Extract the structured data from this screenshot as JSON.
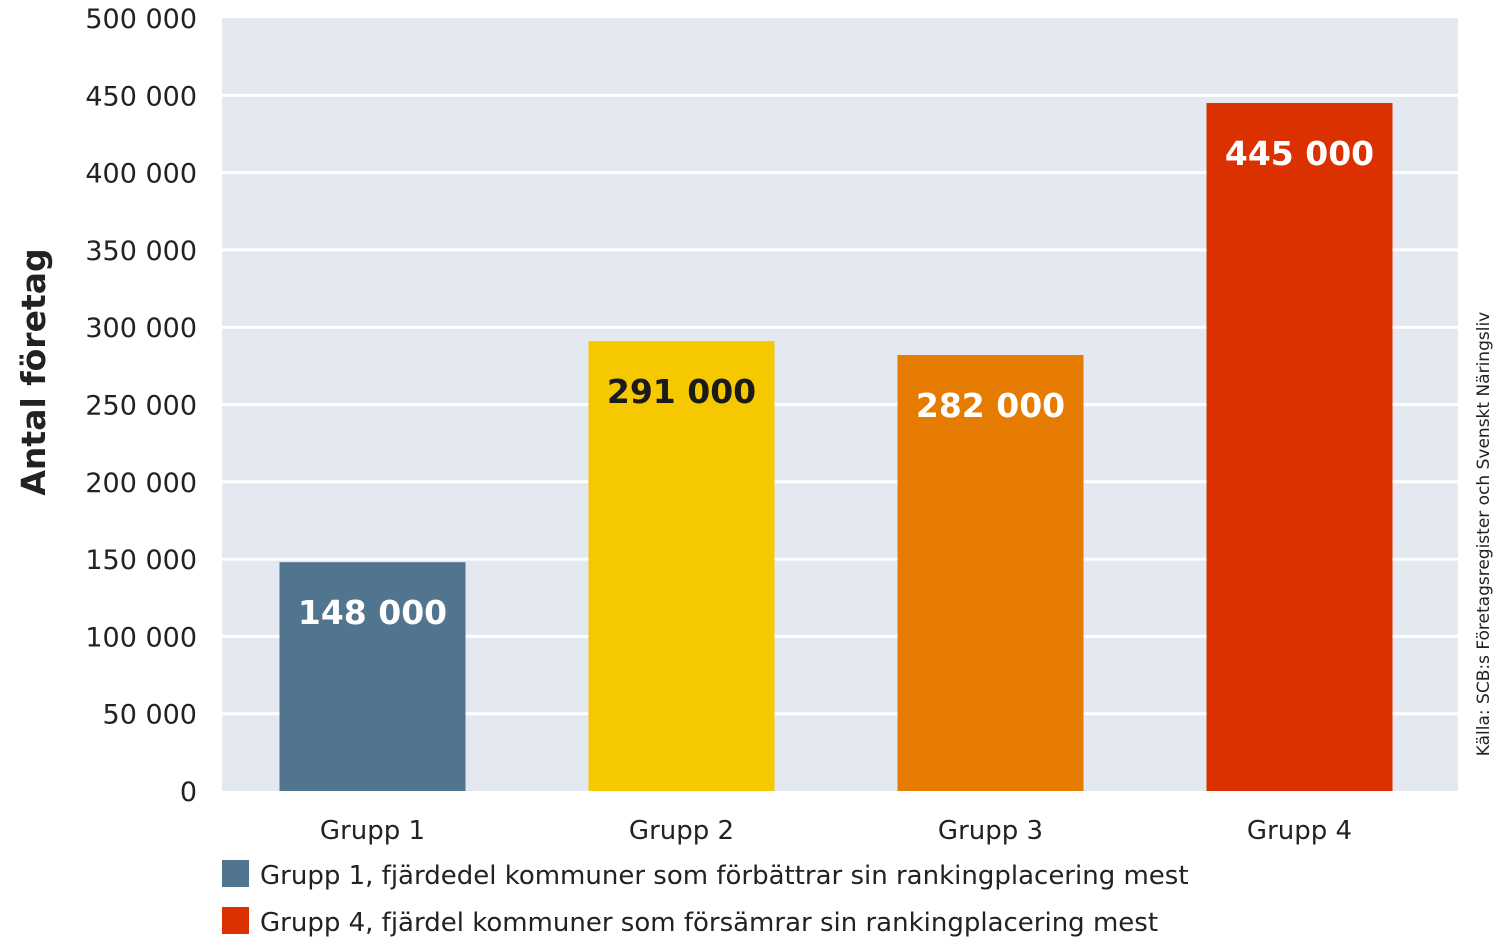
{
  "chart_data": {
    "type": "bar",
    "categories": [
      "Grupp 1",
      "Grupp 2",
      "Grupp 3",
      "Grupp 4"
    ],
    "values": [
      148000,
      291000,
      282000,
      445000
    ],
    "value_labels": [
      "148 000",
      "291 000",
      "282 000",
      "445 000"
    ],
    "bar_colors": [
      "#52758f",
      "#f5c800",
      "#e57b00",
      "#db3000"
    ],
    "bar_label_colors": [
      "#ffffff",
      "#1a1a1a",
      "#ffffff",
      "#ffffff"
    ],
    "ylabel": "Antal företag",
    "ylim": [
      0,
      500000
    ],
    "y_ticks": [
      0,
      50000,
      100000,
      150000,
      200000,
      250000,
      300000,
      350000,
      400000,
      450000,
      500000
    ],
    "y_tick_labels": [
      "0",
      "50 000",
      "100 000",
      "150 000",
      "200 000",
      "250 000",
      "300 000",
      "350 000",
      "400 000",
      "450 000",
      "500 000"
    ],
    "grid": true,
    "plot_background": "#e3e8f1",
    "grid_color": "#ffffff",
    "source": "Källa: SCB:s Företagsregister och Svenskt Näringsliv",
    "legend": [
      {
        "label": "Grupp 1, fjärdedel kommuner som förbättrar sin rankingplacering mest",
        "color": "#52758f"
      },
      {
        "label": "Grupp 4, fjärdel kommuner som försämrar sin rankingplacering mest",
        "color": "#db3000"
      }
    ]
  }
}
